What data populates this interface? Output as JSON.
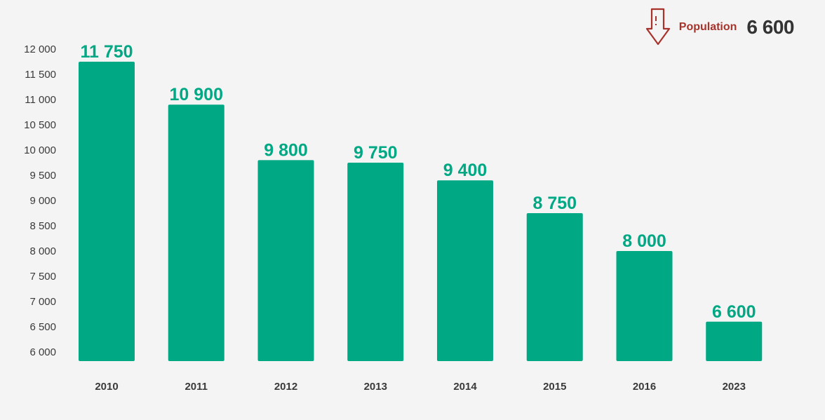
{
  "legend": {
    "label": "Population",
    "value": "6 600",
    "icon": "arrow-down-icon",
    "icon_color": "#a8332b"
  },
  "colors": {
    "bar": "#00a884",
    "value_label": "#00a884",
    "tick": "#3a3a3a",
    "background": "#f4f4f4"
  },
  "chart_data": {
    "type": "bar",
    "categories": [
      "2010",
      "2011",
      "2012",
      "2013",
      "2014",
      "2015",
      "2016",
      "2023"
    ],
    "values": [
      11750,
      10900,
      9800,
      9750,
      9400,
      8750,
      8000,
      6600
    ],
    "value_labels": [
      "11 750",
      "10 900",
      "9 800",
      "9 750",
      "9 400",
      "8 750",
      "8 000",
      "6 600"
    ],
    "title": "",
    "xlabel": "",
    "ylabel": "",
    "ylim": [
      6000,
      12000
    ],
    "yticks": [
      6000,
      6500,
      7000,
      7500,
      8000,
      8500,
      9000,
      9500,
      10000,
      10500,
      11000,
      11500,
      12000
    ],
    "ytick_labels": [
      "6 000",
      "6 500",
      "7 000",
      "7 500",
      "8 000",
      "8 500",
      "9 000",
      "9 500",
      "10 000",
      "10 500",
      "11 000",
      "11 500",
      "12 000"
    ],
    "grid": false,
    "legend_position": "top-right"
  }
}
